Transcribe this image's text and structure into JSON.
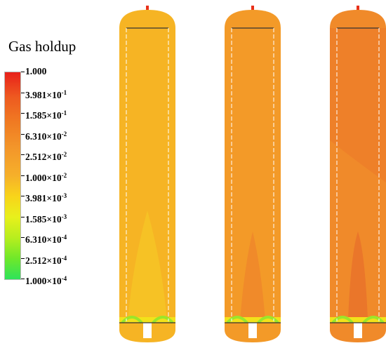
{
  "legend": {
    "title": "Gas holdup",
    "ticks": [
      {
        "base": "1.000",
        "exp": ""
      },
      {
        "base": "3.981×10",
        "exp": "-1"
      },
      {
        "base": "1.585×10",
        "exp": "-1"
      },
      {
        "base": "6.310×10",
        "exp": "-2"
      },
      {
        "base": "2.512×10",
        "exp": "-2"
      },
      {
        "base": "1.000×10",
        "exp": "-2"
      },
      {
        "base": "3.981×10",
        "exp": "-3"
      },
      {
        "base": "1.585×10",
        "exp": "-3"
      },
      {
        "base": "6.310×10",
        "exp": "-4"
      },
      {
        "base": "2.512×10",
        "exp": "-4"
      },
      {
        "base": "1.000×10",
        "exp": "-4"
      }
    ]
  },
  "colors": {
    "column_1_body": "#f6b424",
    "column_2_body": "#f39a28",
    "column_3_body": "#f08a2a",
    "column_3_upper": "#ec7a2a",
    "inlet_green": "#9be62a",
    "inlet_yellow": "#f2e21a",
    "cap_red": "#e8301a"
  }
}
